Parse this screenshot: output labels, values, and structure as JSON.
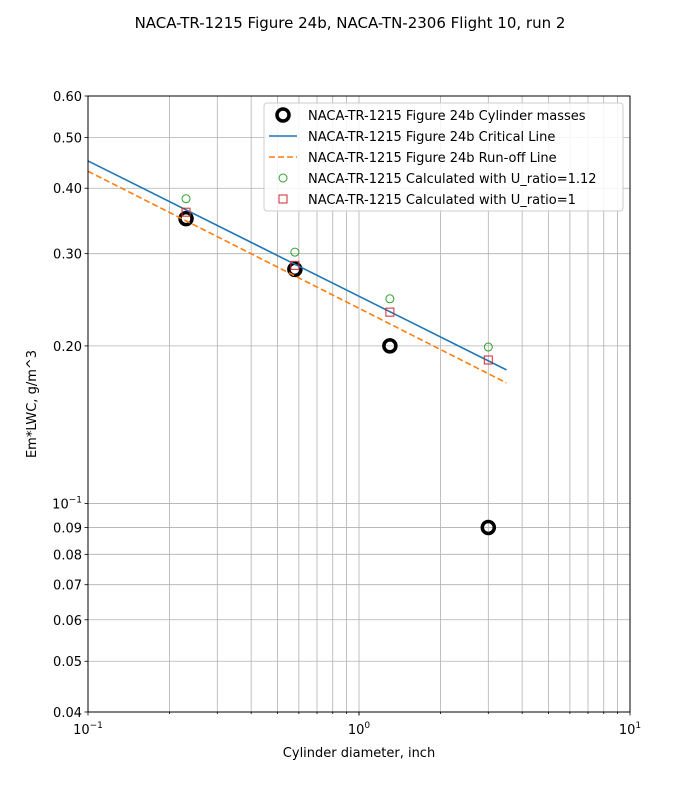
{
  "chart_data": {
    "type": "scatter",
    "title": "NACA-TR-1215 Figure 24b, NACA-TN-2306 Flight 10, run 2",
    "xlabel": "Cylinder diameter, inch",
    "ylabel": "Em*LWC, g/m^3",
    "xscale": "log",
    "yscale": "log",
    "xlim": [
      0.1,
      10
    ],
    "ylim": [
      0.04,
      0.6
    ],
    "grid": true,
    "legend_position": "top-right",
    "x_ticks": [
      {
        "value": 0.1,
        "label": "10",
        "exp": "−1"
      },
      {
        "value": 1,
        "label": "10",
        "exp": "0"
      },
      {
        "value": 10,
        "label": "10",
        "exp": "1"
      }
    ],
    "y_ticks": [
      {
        "value": 0.6,
        "label": "0.60"
      },
      {
        "value": 0.5,
        "label": "0.50"
      },
      {
        "value": 0.4,
        "label": "0.40"
      },
      {
        "value": 0.3,
        "label": "0.30"
      },
      {
        "value": 0.2,
        "label": "0.20"
      },
      {
        "value": 0.1,
        "label": "10",
        "exp": "−1"
      },
      {
        "value": 0.09,
        "label": "0.09"
      },
      {
        "value": 0.08,
        "label": "0.08"
      },
      {
        "value": 0.07,
        "label": "0.07"
      },
      {
        "value": 0.06,
        "label": "0.06"
      },
      {
        "value": 0.05,
        "label": "0.05"
      },
      {
        "value": 0.04,
        "label": "0.04"
      }
    ],
    "series": [
      {
        "name": "NACA-TR-1215 Figure 24b Cylinder masses",
        "kind": "marker-circle-bold",
        "color": "#000000",
        "x": [
          0.23,
          0.58,
          1.3,
          3.0
        ],
        "y": [
          0.35,
          0.28,
          0.2,
          0.09
        ]
      },
      {
        "name": "NACA-TR-1215 Figure 24b Critical Line",
        "kind": "line-solid",
        "color": "#1f77b4",
        "x": [
          0.1,
          3.5
        ],
        "y": [
          0.451,
          0.18
        ]
      },
      {
        "name": "NACA-TR-1215 Figure 24b Run-off Line",
        "kind": "line-dashed",
        "color": "#ff7f0e",
        "x": [
          0.1,
          3.5
        ],
        "y": [
          0.431,
          0.17
        ]
      },
      {
        "name": "NACA-TR-1215 Calculated with U_ratio=1.12",
        "kind": "marker-circle",
        "color": "#2ca02c",
        "x": [
          0.23,
          0.58,
          1.3,
          3.0
        ],
        "y": [
          0.382,
          0.302,
          0.246,
          0.199
        ]
      },
      {
        "name": "NACA-TR-1215 Calculated with U_ratio=1",
        "kind": "marker-square",
        "color": "#d62728",
        "x": [
          0.23,
          0.58,
          1.3,
          3.0
        ],
        "y": [
          0.36,
          0.285,
          0.232,
          0.188
        ]
      }
    ]
  }
}
